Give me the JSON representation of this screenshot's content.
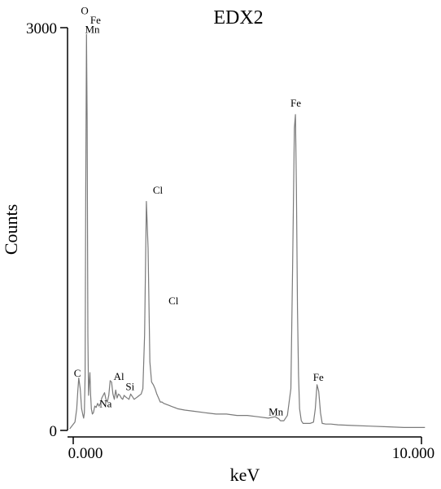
{
  "chart_data": {
    "type": "line",
    "title": "EDX2",
    "xlabel": "keV",
    "ylabel": "Counts",
    "xlim": [
      0,
      10
    ],
    "ylim": [
      0,
      3000
    ],
    "x_tick_labels": [
      "0.000",
      "10.000"
    ],
    "y_tick_labels": [
      "0",
      "3000"
    ],
    "grid": false,
    "line_color": "#7a7a7a",
    "series": [
      {
        "x": [
          -0.1,
          0.05,
          0.1,
          0.13,
          0.16,
          0.2,
          0.24,
          0.28,
          0.3,
          0.32,
          0.34,
          0.36,
          0.38,
          0.4,
          0.42,
          0.44,
          0.46,
          0.48,
          0.5,
          0.52,
          0.55,
          0.58,
          0.62,
          0.66,
          0.7,
          0.74,
          0.78,
          0.82,
          0.86,
          0.9,
          0.94,
          0.98,
          1.02,
          1.06,
          1.1,
          1.14,
          1.18,
          1.22,
          1.26,
          1.3,
          1.34,
          1.38,
          1.42,
          1.46,
          1.5,
          1.55,
          1.6,
          1.65,
          1.7,
          1.75,
          1.8,
          1.85,
          1.9,
          1.95,
          2.0,
          2.05,
          2.1,
          2.15,
          2.2,
          2.25,
          2.3,
          2.35,
          2.4,
          2.45,
          2.5,
          2.55,
          2.6,
          2.65,
          2.7,
          2.75,
          2.8,
          2.85,
          2.9,
          2.95,
          3.0,
          3.2,
          3.5,
          3.8,
          4.1,
          4.4,
          4.7,
          5.0,
          5.3,
          5.6,
          5.8,
          5.9,
          5.95,
          6.05,
          6.15,
          6.25,
          6.3,
          6.35,
          6.38,
          6.41,
          6.44,
          6.47,
          6.5,
          6.55,
          6.6,
          6.65,
          6.7,
          6.8,
          6.9,
          6.95,
          7.0,
          7.05,
          7.1,
          7.15,
          7.25,
          7.4,
          7.6,
          8.0,
          8.5,
          9.0,
          9.5,
          10.0,
          10.1
        ],
        "y": [
          0,
          50,
          150,
          280,
          380,
          300,
          150,
          100,
          80,
          120,
          400,
          1800,
          2950,
          2300,
          700,
          250,
          350,
          420,
          250,
          150,
          110,
          120,
          170,
          160,
          190,
          170,
          190,
          230,
          250,
          270,
          220,
          200,
          250,
          360,
          350,
          260,
          220,
          290,
          230,
          260,
          250,
          230,
          220,
          250,
          240,
          230,
          220,
          260,
          240,
          220,
          230,
          240,
          250,
          260,
          300,
          700,
          1700,
          1350,
          500,
          350,
          330,
          300,
          260,
          230,
          200,
          200,
          190,
          185,
          180,
          175,
          170,
          165,
          160,
          155,
          150,
          140,
          130,
          120,
          110,
          110,
          100,
          100,
          90,
          80,
          90,
          75,
          60,
          60,
          100,
          300,
          1200,
          2250,
          2350,
          1800,
          900,
          400,
          150,
          60,
          40,
          40,
          40,
          40,
          50,
          150,
          330,
          280,
          120,
          40,
          35,
          35,
          30,
          25,
          20,
          15,
          10,
          10,
          10
        ],
        "peak_labels": [
          {
            "text": "O",
            "x": 0.33,
            "y": 3100
          },
          {
            "text": "Fe",
            "x": 0.64,
            "y": 3030
          },
          {
            "text": "Mn",
            "x": 0.55,
            "y": 2960
          },
          {
            "text": "C",
            "x": 0.12,
            "y": 390
          },
          {
            "text": "Na",
            "x": 0.93,
            "y": 160
          },
          {
            "text": "Al",
            "x": 1.31,
            "y": 365
          },
          {
            "text": "Si",
            "x": 1.63,
            "y": 290
          },
          {
            "text": "Cl",
            "x": 2.43,
            "y": 1760
          },
          {
            "text": "Cl",
            "x": 2.88,
            "y": 930
          },
          {
            "text": "Fe",
            "x": 6.39,
            "y": 2410
          },
          {
            "text": "Mn",
            "x": 5.82,
            "y": 100
          },
          {
            "text": "Fe",
            "x": 7.04,
            "y": 360
          }
        ]
      }
    ]
  }
}
